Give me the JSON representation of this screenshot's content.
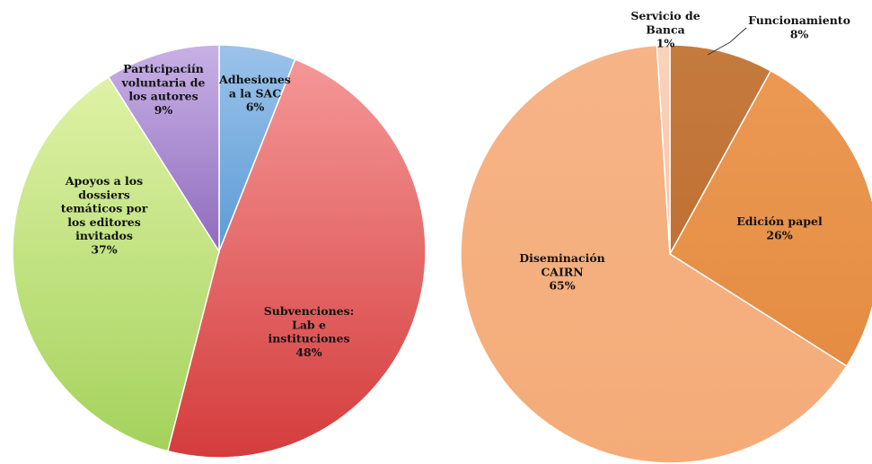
{
  "chart_data": [
    {
      "type": "pie",
      "slices": [
        {
          "label": [
            "Adhesiones",
            "a la SAC",
            "6%"
          ],
          "value": 6,
          "color": "#5b9bd5",
          "light": "#9cc3ea"
        },
        {
          "label": [
            "Subvenciones:",
            "Lab e",
            "instituciones",
            "48%"
          ],
          "value": 48,
          "color": "#d43c3c",
          "light": "#f59797"
        },
        {
          "label": [
            "Apoyos a los",
            "dossiers",
            "temáticos por",
            "los editores",
            "invitados",
            "37%"
          ],
          "value": 37,
          "color": "#a4d25c",
          "light": "#dff2a6"
        },
        {
          "label": [
            "Participaciín",
            "voluntaria de",
            "los autores",
            "9%"
          ],
          "value": 9,
          "color": "#8f6bbd",
          "light": "#c8b1e6"
        }
      ]
    },
    {
      "type": "pie",
      "slices": [
        {
          "label": [
            "Funcionamiento",
            "8%"
          ],
          "value": 8,
          "color": "#c07133",
          "light": "#c57a3e"
        },
        {
          "label": [
            "Edición papel",
            "26%"
          ],
          "value": 26,
          "color": "#e48c42",
          "light": "#ec9954"
        },
        {
          "label": [
            "Diseminación",
            "CAIRN",
            "65%"
          ],
          "value": 65,
          "color": "#f4ab78",
          "light": "#f6b487"
        },
        {
          "label": [
            "Servicio de",
            "Banca",
            "1%"
          ],
          "value": 1,
          "color": "#f7c4a6",
          "light": "#f9d3bc"
        }
      ]
    }
  ]
}
